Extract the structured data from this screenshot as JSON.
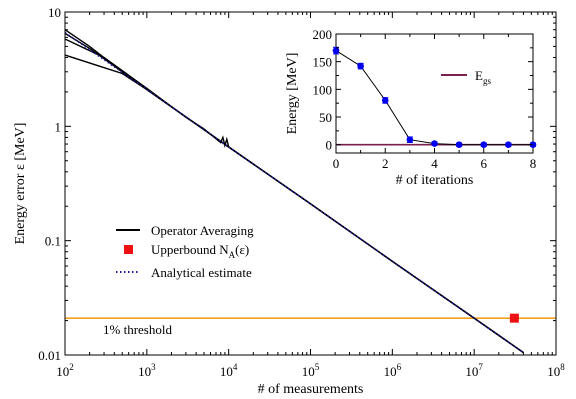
{
  "chart_data": [
    {
      "type": "line",
      "xlabel": "# of measurements",
      "ylabel": "Energy error  ε [MeV]",
      "xscale": "log",
      "yscale": "log",
      "xlim": [
        100,
        100000000
      ],
      "ylim": [
        0.01,
        10
      ],
      "x_ticks": [
        {
          "value": 100,
          "base": "10",
          "exp": "2"
        },
        {
          "value": 1000,
          "base": "10",
          "exp": "3"
        },
        {
          "value": 10000,
          "base": "10",
          "exp": "4"
        },
        {
          "value": 100000,
          "base": "10",
          "exp": "5"
        },
        {
          "value": 1000000,
          "base": "10",
          "exp": "6"
        },
        {
          "value": 10000000,
          "base": "10",
          "exp": "7"
        },
        {
          "value": 100000000,
          "base": "10",
          "exp": "8"
        }
      ],
      "y_ticks": [
        {
          "value": 0.01,
          "label": "0.01"
        },
        {
          "value": 0.1,
          "label": "0.1"
        },
        {
          "value": 1,
          "label": "1"
        },
        {
          "value": 10,
          "label": "10"
        }
      ],
      "legend": {
        "position": "center-left",
        "entries": [
          {
            "label": "Operator Averaging"
          },
          {
            "label": "Upperbound N",
            "sub": "A",
            "tail": "(ε)"
          },
          {
            "label": "Analytical estimate"
          }
        ]
      },
      "series": [
        {
          "name": "Operator Averaging",
          "color": "#000000",
          "style": "solid",
          "runs": [
            [
              [
                100,
                7.0
              ],
              [
                200,
                5.0
              ],
              [
                500,
                3.0
              ],
              [
                1000,
                2.1
              ],
              [
                10000,
                0.66
              ],
              [
                100000,
                0.21
              ],
              [
                1000000,
                0.066
              ],
              [
                10000000,
                0.021
              ],
              [
                40000000,
                0.0105
              ]
            ],
            [
              [
                100,
                6.5
              ],
              [
                200,
                4.8
              ],
              [
                500,
                3.0
              ],
              [
                1000,
                2.1
              ],
              [
                10000,
                0.66
              ],
              [
                100000,
                0.21
              ],
              [
                1000000,
                0.066
              ],
              [
                10000000,
                0.021
              ],
              [
                40000000,
                0.0105
              ]
            ],
            [
              [
                100,
                4.2
              ],
              [
                250,
                3.4
              ],
              [
                500,
                2.9
              ],
              [
                1000,
                2.1
              ],
              [
                10000,
                0.66
              ],
              [
                100000,
                0.21
              ],
              [
                1000000,
                0.066
              ],
              [
                10000000,
                0.021
              ],
              [
                40000000,
                0.0105
              ]
            ],
            [
              [
                100,
                5.8
              ],
              [
                300,
                4.0
              ],
              [
                1000,
                2.15
              ],
              [
                3000,
                1.2
              ],
              [
                5000,
                0.95
              ],
              [
                8000,
                0.72
              ],
              [
                8500,
                0.8
              ],
              [
                9000,
                0.68
              ],
              [
                9500,
                0.77
              ],
              [
                10000,
                0.66
              ],
              [
                100000,
                0.21
              ],
              [
                1000000,
                0.066
              ],
              [
                10000000,
                0.021
              ],
              [
                40000000,
                0.0105
              ]
            ]
          ]
        },
        {
          "name": "Analytical estimate",
          "color": "#1a1aa0",
          "style": "dotted",
          "points": [
            [
              100,
              6.6
            ],
            [
              1000,
              2.1
            ],
            [
              10000,
              0.66
            ],
            [
              100000,
              0.21
            ],
            [
              1000000,
              0.066
            ],
            [
              10000000,
              0.021
            ],
            [
              40000000,
              0.0105
            ]
          ]
        },
        {
          "name": "Upperbound N_A(ε)",
          "type": "scatter",
          "color": "#ee1111",
          "marker": "square",
          "points": [
            [
              31000000,
              0.021
            ]
          ]
        }
      ],
      "threshold": {
        "value": 0.021,
        "color": "#f4a020",
        "label": "1% threshold"
      }
    },
    {
      "type": "line",
      "xlabel": "# of iterations",
      "ylabel": "Energy [MeV]",
      "xlim": [
        0,
        8
      ],
      "ylim": [
        -15,
        200
      ],
      "x_ticks": [
        0,
        2,
        4,
        6,
        8
      ],
      "y_ticks": [
        0,
        50,
        100,
        150,
        200
      ],
      "legend": {
        "position": "right",
        "entries": [
          {
            "label": "E",
            "sub": "gs"
          }
        ]
      },
      "series": [
        {
          "name": "Energy",
          "color": "#0000ee",
          "marker": "circle",
          "x": [
            0,
            1,
            2,
            3,
            4,
            5,
            6,
            7,
            8
          ],
          "y": [
            170,
            142,
            80,
            9,
            2,
            0,
            0,
            0,
            0
          ],
          "err": [
            6,
            5,
            5,
            5,
            3,
            3,
            3,
            3,
            3
          ]
        },
        {
          "name": "E_gs",
          "color": "#7a1f4e",
          "value": 0
        }
      ]
    }
  ]
}
